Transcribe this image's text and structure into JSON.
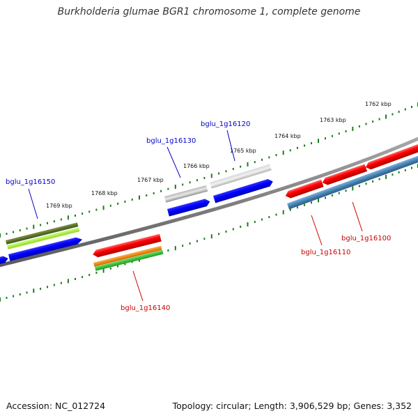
{
  "title": "Burkholderia glumae BGR1 chromosome 1, complete genome",
  "footer": {
    "accession": "Accession: NC_012724",
    "summary": "Topology: circular; Length: 3,906,529 bp; Genes: 3,352"
  },
  "colors": {
    "backbone": "#808080",
    "ticks": "#1e7a1e",
    "label_forward": "#0000cc",
    "label_reverse": "#cc0000"
  },
  "scale": {
    "upper_labels": [
      "1769 kbp",
      "1768 kbp",
      "1767 kbp",
      "1766 kbp",
      "1765 kbp",
      "1764 kbp",
      "1763 kbp",
      "1762 kbp"
    ],
    "lower_labels": []
  },
  "gene_labels": [
    {
      "text": "bglu_1g16150",
      "strand": "forward"
    },
    {
      "text": "bglu_1g16130",
      "strand": "forward"
    },
    {
      "text": "bglu_1g16120",
      "strand": "forward"
    },
    {
      "text": "bglu_1g16140",
      "strand": "reverse"
    },
    {
      "text": "bglu_1g16110",
      "strand": "reverse"
    },
    {
      "text": "bglu_1g16100",
      "strand": "reverse"
    }
  ],
  "features": [
    {
      "name": "upper-olive-bar",
      "color": "#556b2f"
    },
    {
      "name": "upper-lime-bar",
      "color": "#adff2f"
    },
    {
      "name": "blue-gene-arrow",
      "color": "#0000ff"
    },
    {
      "name": "grey-gene-bar",
      "color": "#a0a0a0"
    },
    {
      "name": "light-grey-gene-bar",
      "color": "#c8c8c8"
    },
    {
      "name": "red-gene-arrow",
      "color": "#ff0000"
    },
    {
      "name": "orange-bar",
      "color": "#ff8c00"
    },
    {
      "name": "green-bar",
      "color": "#32cd32"
    },
    {
      "name": "steelblue-bar",
      "color": "#4682b4"
    }
  ]
}
